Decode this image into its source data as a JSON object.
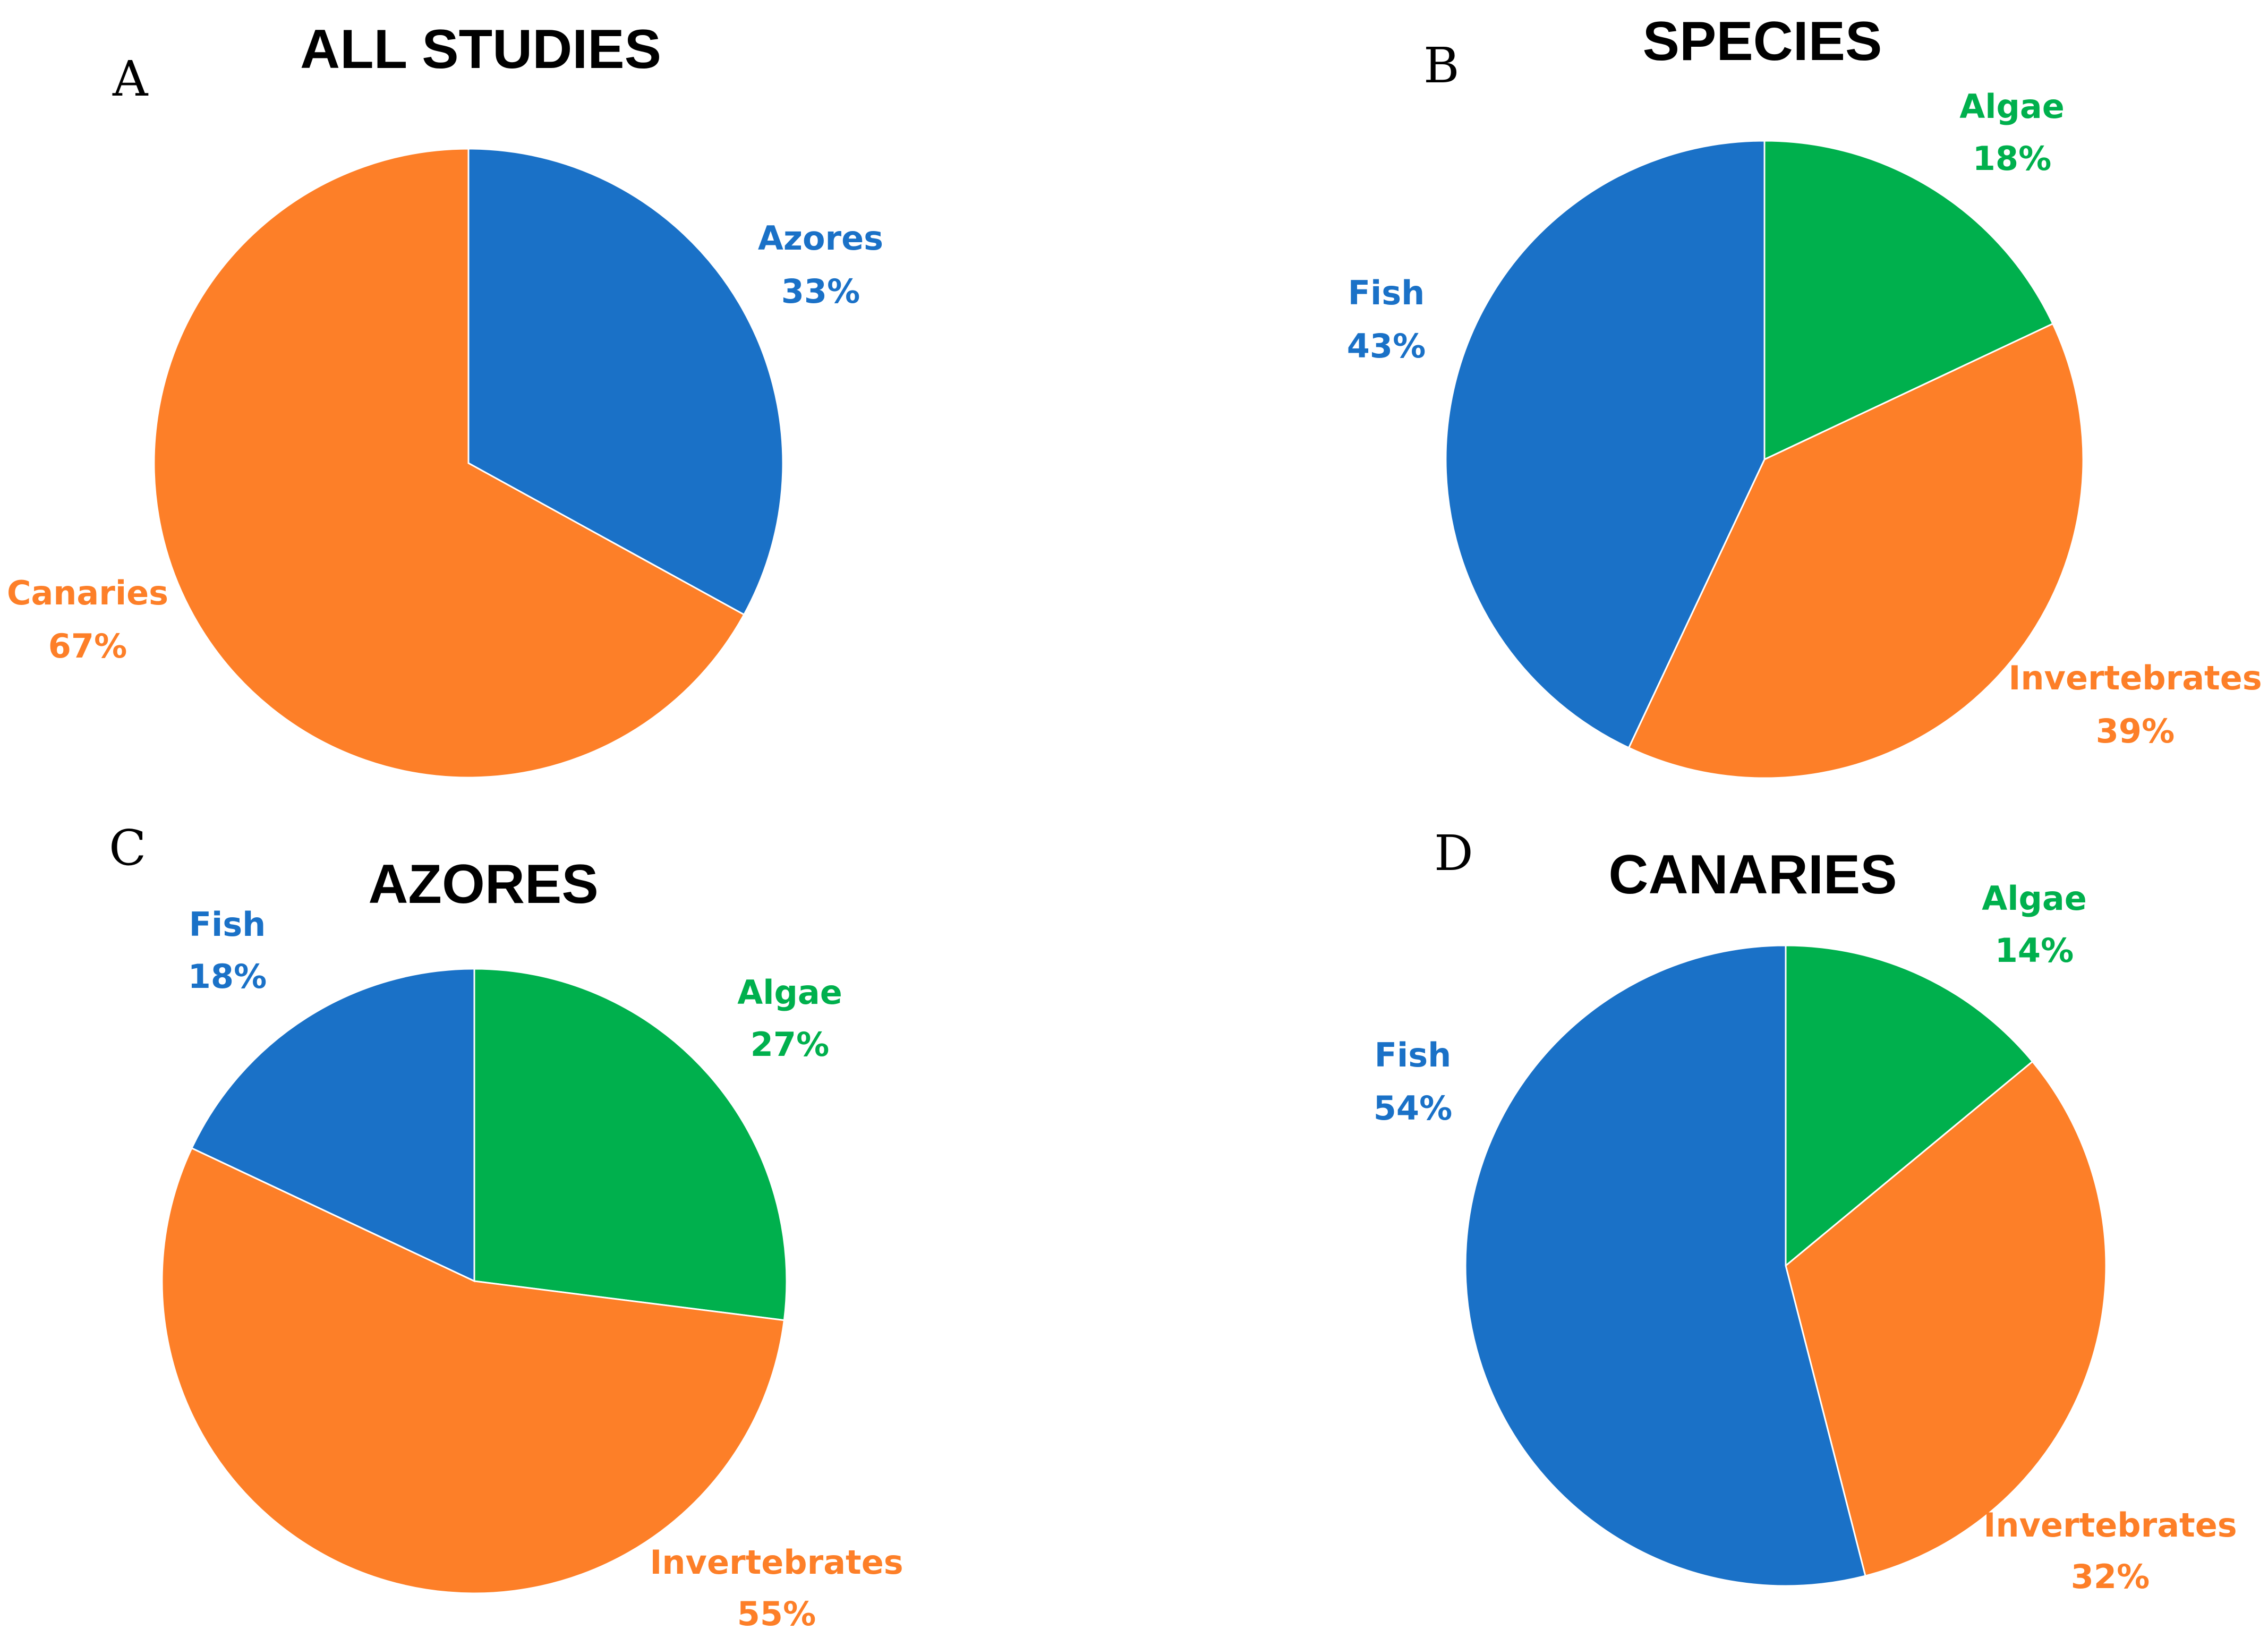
{
  "colors": {
    "azores": "#1a71c7",
    "canaries": "#fd7f28",
    "fish": "#1a71c7",
    "invertebrates": "#fd7f28",
    "algae": "#00b04d"
  },
  "chart_data": [
    {
      "type": "pie",
      "panel": "A",
      "title": "ALL STUDIES",
      "slices": [
        {
          "label": "Azores",
          "value": 33,
          "pct_text": "33%",
          "color_key": "azores"
        },
        {
          "label": "Canaries",
          "value": 67,
          "pct_text": "67%",
          "color_key": "canaries"
        }
      ]
    },
    {
      "type": "pie",
      "panel": "B",
      "title": "SPECIES",
      "slices": [
        {
          "label": "Algae",
          "value": 18,
          "pct_text": "18%",
          "color_key": "algae"
        },
        {
          "label": "Invertebrates",
          "value": 39,
          "pct_text": "39%",
          "color_key": "invertebrates"
        },
        {
          "label": "Fish",
          "value": 43,
          "pct_text": "43%",
          "color_key": "fish"
        }
      ]
    },
    {
      "type": "pie",
      "panel": "C",
      "title": "AZORES",
      "slices": [
        {
          "label": "Algae",
          "value": 27,
          "pct_text": "27%",
          "color_key": "algae"
        },
        {
          "label": "Invertebrates",
          "value": 55,
          "pct_text": "55%",
          "color_key": "invertebrates"
        },
        {
          "label": "Fish",
          "value": 18,
          "pct_text": "18%",
          "color_key": "fish"
        }
      ]
    },
    {
      "type": "pie",
      "panel": "D",
      "title": "CANARIES",
      "slices": [
        {
          "label": "Algae",
          "value": 14,
          "pct_text": "14%",
          "color_key": "algae"
        },
        {
          "label": "Invertebrates",
          "value": 32,
          "pct_text": "32%",
          "color_key": "invertebrates"
        },
        {
          "label": "Fish",
          "value": 54,
          "pct_text": "54%",
          "color_key": "fish"
        }
      ]
    }
  ]
}
